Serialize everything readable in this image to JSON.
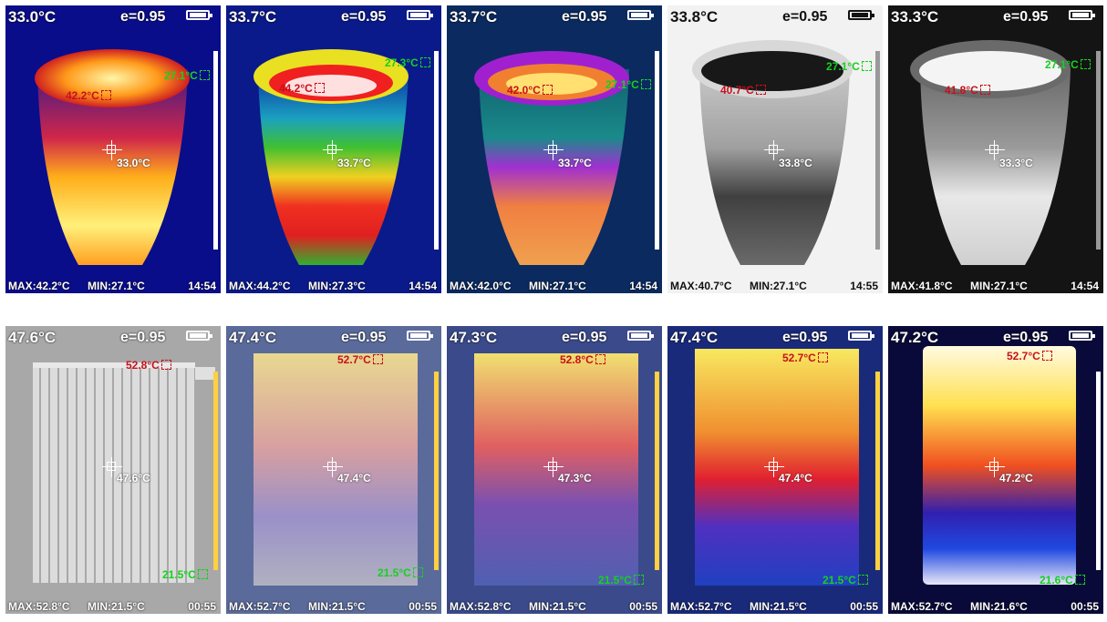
{
  "emissivity": "e=0.95",
  "panels": [
    {
      "temp": "33.0°C",
      "max": "MAX:42.2°C",
      "min": "MIN:27.1°C",
      "time": "14:54",
      "hot_label": "42.2°C",
      "cold_label": "27.1°C",
      "center_label": "33.0°C"
    },
    {
      "temp": "33.7°C",
      "max": "MAX:44.2°C",
      "min": "MIN:27.3°C",
      "time": "14:54",
      "hot_label": "44.2°C",
      "cold_label": "27.3°C",
      "center_label": "33.7°C"
    },
    {
      "temp": "33.7°C",
      "max": "MAX:42.0°C",
      "min": "MIN:27.1°C",
      "time": "14:54",
      "hot_label": "42.0°C",
      "cold_label": "27.1°C",
      "center_label": "33.7°C"
    },
    {
      "temp": "33.8°C",
      "max": "MAX:40.7°C",
      "min": "MIN:27.1°C",
      "time": "14:55",
      "hot_label": "40.7°C",
      "cold_label": "27.1°C",
      "center_label": "33.8°C"
    },
    {
      "temp": "33.3°C",
      "max": "MAX:41.8°C",
      "min": "MIN:27.1°C",
      "time": "14:54",
      "hot_label": "41.8°C",
      "cold_label": "27.1°C",
      "center_label": "33.3°C"
    },
    {
      "temp": "47.6°C",
      "max": "MAX:52.8°C",
      "min": "MIN:21.5°C",
      "time": "00:55",
      "hot_label": "52.8°C",
      "cold_label": "21.5°C",
      "center_label": "47.6°C"
    },
    {
      "temp": "47.4°C",
      "max": "MAX:52.7°C",
      "min": "MIN:21.5°C",
      "time": "00:55",
      "hot_label": "52.7°C",
      "cold_label": "21.5°C",
      "center_label": "47.4°C"
    },
    {
      "temp": "47.3°C",
      "max": "MAX:52.8°C",
      "min": "MIN:21.5°C",
      "time": "00:55",
      "hot_label": "52.8°C",
      "cold_label": "21.5°C",
      "center_label": "47.3°C"
    },
    {
      "temp": "47.4°C",
      "max": "MAX:52.7°C",
      "min": "MIN:21.5°C",
      "time": "00:55",
      "hot_label": "52.7°C",
      "cold_label": "21.5°C",
      "center_label": "47.4°C"
    },
    {
      "temp": "47.2°C",
      "max": "MAX:52.7°C",
      "min": "MIN:21.6°C",
      "time": "00:55",
      "hot_label": "52.7°C",
      "cold_label": "21.6°C",
      "center_label": "47.2°C"
    }
  ],
  "palettes": [
    "iron",
    "rainbow",
    "purple-ironbow",
    "black-hot",
    "white-hot",
    "visible-blend",
    "blend-25",
    "blend-50",
    "blend-75",
    "iron-full"
  ]
}
